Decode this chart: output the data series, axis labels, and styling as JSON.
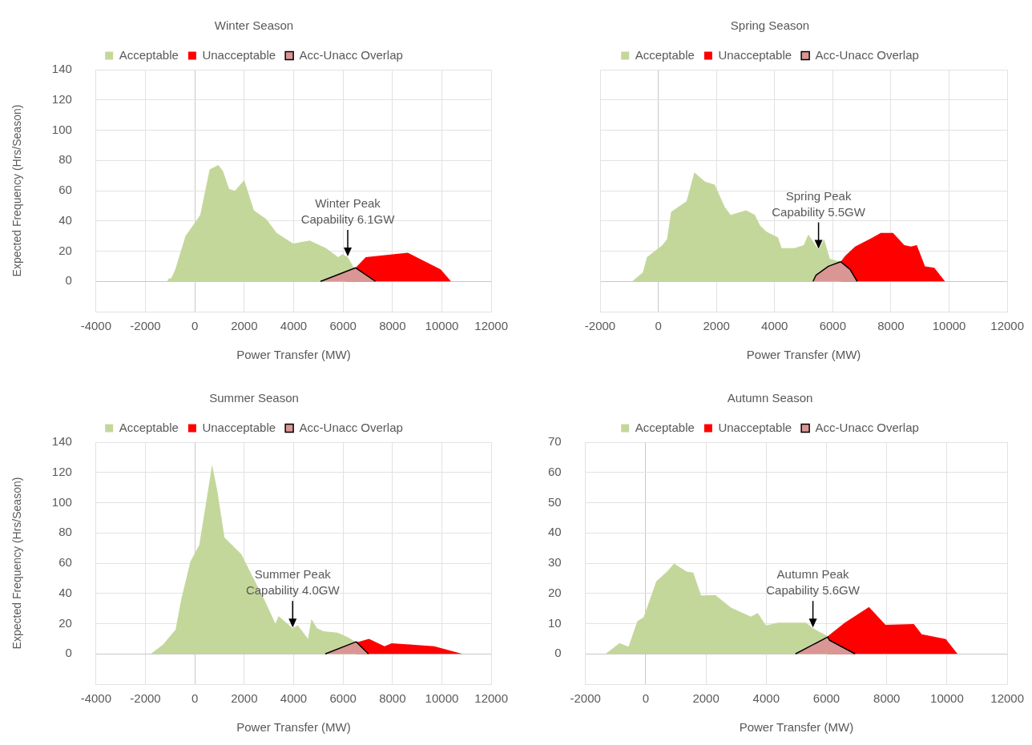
{
  "chart_data": [
    {
      "type": "area",
      "title": "Winter Season",
      "xlabel": "Power Transfer (MW)",
      "ylabel": "Expected Frequency (Hrs/Season)",
      "xlim": [
        -4000,
        12000
      ],
      "xticks": [
        -4000,
        -2000,
        0,
        2000,
        4000,
        6000,
        8000,
        10000,
        12000
      ],
      "ylim": [
        -20,
        140
      ],
      "yticks": [
        0,
        20,
        40,
        60,
        80,
        100,
        120,
        140
      ],
      "grid": true,
      "legend": "top",
      "series": [
        {
          "name": "Acceptable",
          "color": "#c4d79b",
          "x": [
            -1120,
            -1050,
            -960,
            -790,
            -380,
            220,
            600,
            950,
            1140,
            1390,
            1630,
            2000,
            2390,
            2900,
            3310,
            3980,
            4650,
            5310,
            5800,
            5980,
            6190,
            6440,
            6800
          ],
          "values": [
            0,
            2,
            2,
            8,
            30,
            44,
            74,
            77,
            73,
            61,
            60,
            67,
            47,
            41,
            32,
            25,
            27,
            22,
            16,
            18,
            16,
            9,
            0
          ]
        },
        {
          "name": "Unacceptable",
          "color": "#ff0000",
          "x": [
            6100,
            6510,
            6920,
            8620,
            9950,
            10370
          ],
          "values": [
            0,
            9,
            16,
            19,
            8,
            0
          ]
        },
        {
          "name": "Acc-Unacc Overlap",
          "color": "#da9694",
          "x": [
            5090,
            6510,
            7310
          ],
          "values": [
            0,
            9,
            0
          ]
        }
      ],
      "annotations": [
        {
          "text": "Winter Peak\nCapability 6.1GW",
          "x": 6190,
          "y": 16
        }
      ]
    },
    {
      "type": "area",
      "title": "Spring Season",
      "xlabel": "Power Transfer (MW)",
      "xlim": [
        -2000,
        12000
      ],
      "xticks": [
        -2000,
        0,
        2000,
        4000,
        6000,
        8000,
        10000,
        12000
      ],
      "ylim": [
        -20,
        140
      ],
      "yticks": [
        0,
        20,
        40,
        60,
        80,
        100,
        120,
        140
      ],
      "tick_labels": "x",
      "grid": true,
      "legend": "top",
      "series": [
        {
          "name": "Acceptable",
          "color": "#c4d79b",
          "x": [
            -900,
            -530,
            -390,
            140,
            300,
            440,
            970,
            1240,
            1610,
            1940,
            2290,
            2490,
            3020,
            3320,
            3500,
            3710,
            4120,
            4240,
            4680,
            5000,
            5160,
            5510,
            5700,
            5900,
            6270,
            6820
          ],
          "values": [
            0,
            6,
            16,
            24,
            28,
            46,
            53,
            72,
            66,
            64,
            49,
            44,
            47,
            44,
            37,
            33,
            29,
            22,
            22,
            24,
            31,
            21,
            28,
            15,
            13,
            0
          ]
        },
        {
          "name": "Unacceptable",
          "color": "#ff0000",
          "x": [
            6270,
            6270,
            6430,
            6770,
            7370,
            7650,
            8070,
            8460,
            8690,
            8890,
            9170,
            9490,
            9860
          ],
          "values": [
            0,
            13,
            17,
            23,
            29,
            32,
            32,
            24,
            23,
            24,
            10,
            9,
            0
          ]
        },
        {
          "name": "Acc-Unacc Overlap",
          "color": "#da9694",
          "x": [
            5320,
            5420,
            5850,
            6270,
            6590,
            6840
          ],
          "values": [
            0,
            4,
            10,
            13,
            8,
            0
          ]
        }
      ],
      "annotations": [
        {
          "text": "Spring Peak\nCapability 5.5GW",
          "x": 5510,
          "y": 21
        }
      ]
    },
    {
      "type": "area",
      "title": "Summer Season",
      "xlabel": "Power Transfer (MW)",
      "ylabel": "Expected Frequency (Hrs/Season)",
      "xlim": [
        -4000,
        12000
      ],
      "xticks": [
        -4000,
        -2000,
        0,
        2000,
        4000,
        6000,
        8000,
        10000,
        12000
      ],
      "ylim": [
        -20,
        140
      ],
      "yticks": [
        0,
        20,
        40,
        60,
        80,
        100,
        120,
        140
      ],
      "grid": true,
      "legend": "top",
      "series": [
        {
          "name": "Acceptable",
          "color": "#c4d79b",
          "x": [
            -1790,
            -1300,
            -780,
            -550,
            -180,
            180,
            700,
            910,
            1200,
            1880,
            2840,
            3260,
            3390,
            3960,
            4170,
            4580,
            4720,
            4950,
            5210,
            5780,
            6200,
            6510,
            6900
          ],
          "values": [
            0,
            6,
            16,
            36,
            61,
            72,
            125,
            108,
            77,
            66,
            35,
            20,
            25,
            17,
            19,
            10,
            23,
            17,
            15,
            14,
            11,
            8,
            0
          ]
        },
        {
          "name": "Unacceptable",
          "color": "#ff0000",
          "x": [
            6530,
            6530,
            6620,
            7050,
            7680,
            7970,
            8910,
            9690,
            10830
          ],
          "values": [
            0,
            8,
            8,
            10,
            5,
            7,
            6,
            5,
            0
          ]
        },
        {
          "name": "Acc-Unacc Overlap",
          "color": "#da9694",
          "x": [
            5280,
            6530,
            7030
          ],
          "values": [
            0,
            8,
            0
          ]
        }
      ],
      "annotations": [
        {
          "text": "Summer Peak\nCapability 4.0GW",
          "x": 3960,
          "y": 17
        }
      ]
    },
    {
      "type": "area",
      "title": "Autumn Season",
      "xlabel": "Power Transfer (MW)",
      "xlim": [
        -2000,
        12000
      ],
      "xticks": [
        -2000,
        0,
        2000,
        4000,
        6000,
        8000,
        10000,
        12000
      ],
      "ylim": [
        -10,
        70
      ],
      "yticks": [
        0,
        10,
        20,
        30,
        40,
        50,
        60,
        70
      ],
      "grid": true,
      "legend": "top",
      "series": [
        {
          "name": "Acceptable",
          "color": "#c4d79b",
          "x": [
            -1330,
            -870,
            -570,
            -280,
            -70,
            350,
            730,
            940,
            1360,
            1580,
            1840,
            2310,
            2830,
            3490,
            3720,
            3990,
            4400,
            5320,
            5550,
            6040,
            6400
          ],
          "values": [
            0,
            3.6,
            2.4,
            10.8,
            12.1,
            24,
            27.4,
            29.9,
            27.2,
            26.9,
            19.3,
            19.5,
            15.3,
            12.3,
            13.5,
            9.4,
            10.3,
            10.3,
            8.5,
            5.8,
            0
          ]
        },
        {
          "name": "Unacceptable",
          "color": "#ff0000",
          "x": [
            6040,
            6040,
            6610,
            7410,
            7960,
            8900,
            9160,
            9960,
            10350
          ],
          "values": [
            0,
            5.8,
            10.3,
            15.5,
            9.6,
            9.9,
            6.5,
            4.9,
            0
          ]
        },
        {
          "name": "Acc-Unacc Overlap",
          "color": "#da9694",
          "x": [
            4970,
            6040,
            6100,
            6950
          ],
          "values": [
            0,
            5.6,
            4.5,
            0
          ]
        }
      ],
      "annotations": [
        {
          "text": "Autumn Peak\nCapability 5.6GW",
          "x": 5550,
          "y": 8.5
        }
      ]
    }
  ]
}
